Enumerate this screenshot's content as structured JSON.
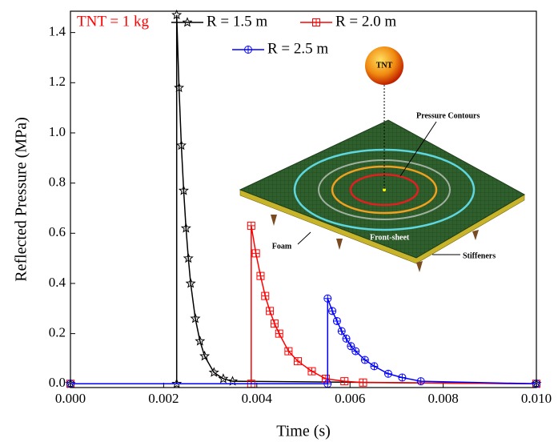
{
  "chart_data": {
    "type": "line",
    "xlabel": "Time (s)",
    "ylabel": "Reflected Pressure (MPa)",
    "legend_title": "TNT = 1 kg",
    "inset_labels": [
      "TNT",
      "Pressure Contours",
      "Foam",
      "Front-sheet",
      "Stiffeners"
    ],
    "xlim": [
      0,
      0.01
    ],
    "ylim": [
      -0.015,
      1.485
    ],
    "xticks": [
      {
        "value": 0,
        "label": "0.000"
      },
      {
        "value": 0.002,
        "label": "0.002"
      },
      {
        "value": 0.004,
        "label": "0.004"
      },
      {
        "value": 0.006,
        "label": "0.006"
      },
      {
        "value": 0.008,
        "label": "0.008"
      },
      {
        "value": 0.01,
        "label": "0.010"
      }
    ],
    "yticks": [
      {
        "value": 0,
        "label": "0.0"
      },
      0.2,
      0.4,
      0.6,
      0.8,
      {
        "value": 1,
        "label": "1.0"
      },
      1.2,
      1.4
    ],
    "series": [
      {
        "name": "R = 1.5 m",
        "color": "#000000",
        "marker": "star",
        "x": [
          0,
          0.00228,
          0.00228,
          0.00233,
          0.00238,
          0.00243,
          0.00248,
          0.00253,
          0.00258,
          0.00268,
          0.00278,
          0.00288,
          0.00308,
          0.00328,
          0.00348,
          0.01
        ],
        "values": [
          0,
          0,
          1.47,
          1.18,
          0.95,
          0.77,
          0.62,
          0.5,
          0.4,
          0.26,
          0.17,
          0.11,
          0.045,
          0.02,
          0.01,
          0
        ]
      },
      {
        "name": "R = 2.0 m",
        "color": "#ff0000",
        "marker": "square-plus",
        "x": [
          0,
          0.00388,
          0.00388,
          0.00398,
          0.00408,
          0.00418,
          0.00428,
          0.00438,
          0.00448,
          0.00468,
          0.00488,
          0.00518,
          0.00548,
          0.00588,
          0.00628,
          0.01
        ],
        "values": [
          0,
          0,
          0.63,
          0.52,
          0.43,
          0.35,
          0.29,
          0.24,
          0.2,
          0.13,
          0.09,
          0.05,
          0.02,
          0.01,
          0.005,
          0
        ]
      },
      {
        "name": "R = 2.5 m",
        "color": "#0000ff",
        "marker": "circle-plus",
        "x": [
          0,
          0.00552,
          0.00552,
          0.00562,
          0.00572,
          0.00582,
          0.00592,
          0.00602,
          0.00612,
          0.00632,
          0.00652,
          0.00682,
          0.00712,
          0.00752,
          0.01
        ],
        "values": [
          0,
          0,
          0.34,
          0.29,
          0.25,
          0.21,
          0.18,
          0.15,
          0.13,
          0.095,
          0.07,
          0.04,
          0.025,
          0.01,
          0
        ]
      }
    ]
  }
}
